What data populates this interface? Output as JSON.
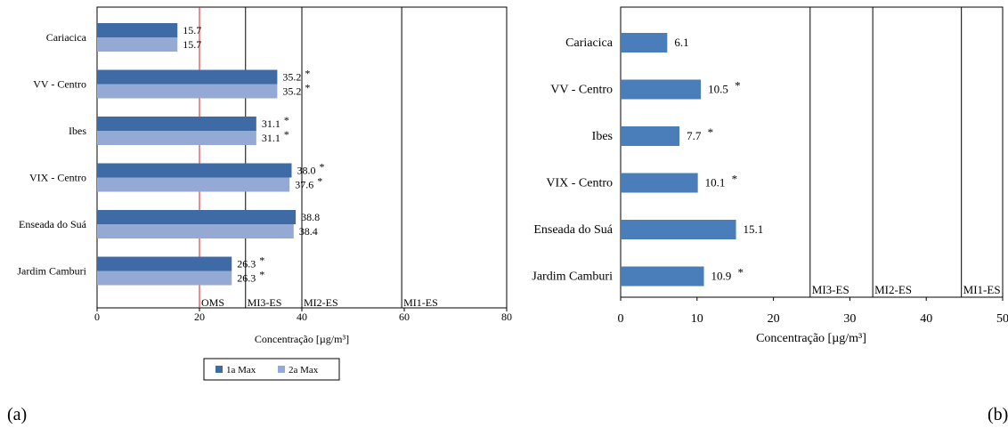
{
  "chart_data": [
    {
      "panel_label": "(a)",
      "type": "bar",
      "orientation": "horizontal",
      "categories": [
        "Cariacica",
        "VV - Centro",
        "Ibes",
        "VIX - Centro",
        "Enseada do Suá",
        "Jardim Camburi"
      ],
      "series": [
        {
          "name": "1a Max",
          "color": "#3e6aa6",
          "values": [
            15.7,
            35.2,
            31.1,
            38.0,
            38.8,
            26.3
          ],
          "labels": [
            "15.7",
            "35.2",
            "31.1",
            "38.0",
            "38.8",
            "26.3"
          ],
          "marks": [
            "",
            "*",
            "*",
            "*",
            "",
            "*"
          ]
        },
        {
          "name": "2a Max",
          "color": "#94a9d3",
          "values": [
            15.7,
            35.2,
            31.1,
            37.6,
            38.4,
            26.3
          ],
          "labels": [
            "15.7",
            "35.2",
            "31.1",
            "37.6",
            "38.4",
            "26.3"
          ],
          "marks": [
            "",
            "*",
            "*",
            "*",
            "",
            "*"
          ]
        }
      ],
      "xlabel": "Concentração [µg/m³]",
      "xlim": [
        0,
        80
      ],
      "xticks": [
        "0",
        "20",
        "40",
        "60",
        "80"
      ],
      "reference_lines": [
        {
          "label": "OMS",
          "value": 20,
          "color": "#e0191d"
        },
        {
          "label": "MI3-ES",
          "value": 29,
          "color": "#000000"
        },
        {
          "label": "MI2-ES",
          "value": 40,
          "color": "#000000"
        },
        {
          "label": "MI1-ES",
          "value": 59.5,
          "color": "#000000"
        }
      ],
      "legend_position": "bottom"
    },
    {
      "panel_label": "(b)",
      "type": "bar",
      "orientation": "horizontal",
      "categories": [
        "Cariacica",
        "VV - Centro",
        "Ibes",
        "VIX - Centro",
        "Enseada do Suá",
        "Jardim Camburi"
      ],
      "series": [
        {
          "color": "#4a7ebb",
          "values": [
            6.1,
            10.5,
            7.7,
            10.1,
            15.1,
            10.9
          ],
          "labels": [
            "6.1",
            "10.5",
            "7.7",
            "10.1",
            "15.1",
            "10.9"
          ],
          "marks": [
            "",
            "*",
            "*",
            "*",
            "",
            "*"
          ]
        }
      ],
      "xlabel": "Concentração [µg/m³]",
      "xlim": [
        0,
        50
      ],
      "xticks": [
        "0",
        "10",
        "20",
        "30",
        "40",
        "50"
      ],
      "reference_lines": [
        {
          "label": "MI3-ES",
          "value": 24.8,
          "color": "#000000"
        },
        {
          "label": "MI2-ES",
          "value": 33.0,
          "color": "#000000"
        },
        {
          "label": "MI1-ES",
          "value": 44.6,
          "color": "#000000"
        }
      ]
    }
  ]
}
